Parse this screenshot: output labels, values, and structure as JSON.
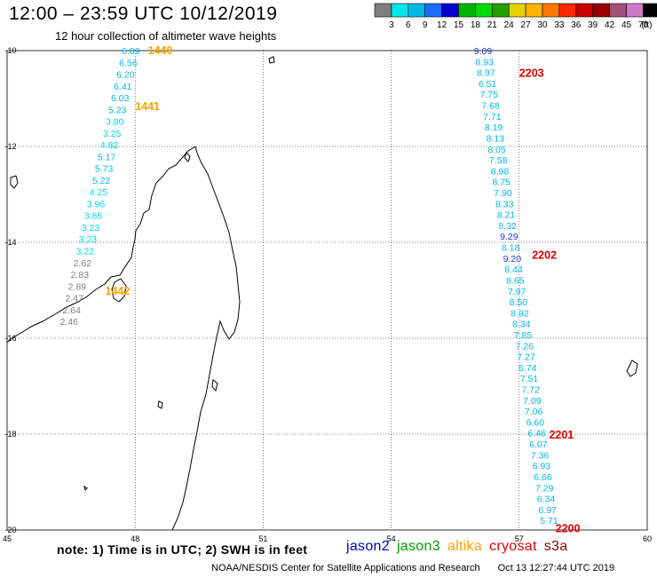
{
  "header": {
    "title": "12:00 – 23:59 UTC 10/12/2019",
    "subtitle": "12 hour collection of altimeter wave heights"
  },
  "legend": {
    "unit": "(ft)",
    "bins": [
      {
        "label": "",
        "color": "#7f7f7f"
      },
      {
        "label": "3",
        "color": "#00e5e5"
      },
      {
        "label": "6",
        "color": "#00b8e8"
      },
      {
        "label": "9",
        "color": "#1e6cff"
      },
      {
        "label": "12",
        "color": "#0000cc"
      },
      {
        "label": "15",
        "color": "#00b400"
      },
      {
        "label": "18",
        "color": "#00dc00"
      },
      {
        "label": "21",
        "color": "#22a000"
      },
      {
        "label": "24",
        "color": "#e6d200"
      },
      {
        "label": "27",
        "color": "#ffb400"
      },
      {
        "label": "30",
        "color": "#ff7800"
      },
      {
        "label": "33",
        "color": "#ff2800"
      },
      {
        "label": "36",
        "color": "#c80000"
      },
      {
        "label": "39",
        "color": "#960000"
      },
      {
        "label": "42",
        "color": "#a0507a"
      },
      {
        "label": "45",
        "color": "#d278c8"
      },
      {
        "label": "70",
        "color": "#000000"
      }
    ]
  },
  "axes": {
    "lat_ticks": [
      "-10",
      "-12",
      "-14",
      "-16",
      "-18",
      "-20"
    ],
    "lon_ticks": [
      "45",
      "48",
      "51",
      "54",
      "57",
      "60"
    ],
    "lat_range": [
      -20,
      -10
    ],
    "lon_range": [
      45,
      60
    ]
  },
  "tracks": [
    {
      "color": "#00b8e8",
      "lon_start": 47.9,
      "lon_end": 46.45,
      "lat_start": -10.0,
      "lat_end": -15.65,
      "values": [
        {
          "v": "6.89",
          "c": "#00b8e8"
        },
        {
          "v": "6.56",
          "c": "#00b8e8"
        },
        {
          "v": "6.20",
          "c": "#00b8e8"
        },
        {
          "v": "6.41",
          "c": "#00b8e8"
        },
        {
          "v": "6.03",
          "c": "#00b8e8"
        },
        {
          "v": "5.23",
          "c": "#00b8e8"
        },
        {
          "v": "3.80",
          "c": "#00d8e8"
        },
        {
          "v": "3.25",
          "c": "#00d8e8"
        },
        {
          "v": "4.82",
          "c": "#00d8e8"
        },
        {
          "v": "5.17",
          "c": "#00b8e8"
        },
        {
          "v": "5.73",
          "c": "#00b8e8"
        },
        {
          "v": "5.22",
          "c": "#00b8e8"
        },
        {
          "v": "4.25",
          "c": "#00d8e8"
        },
        {
          "v": "3.96",
          "c": "#00d8e8"
        },
        {
          "v": "3.85",
          "c": "#00d8e8"
        },
        {
          "v": "3.23",
          "c": "#00d8e8"
        },
        {
          "v": "3.23",
          "c": "#00d8e8"
        },
        {
          "v": "3.22",
          "c": "#00d8e8"
        },
        {
          "v": "2.62",
          "c": "#7f7f7f"
        },
        {
          "v": "2.83",
          "c": "#7f7f7f"
        },
        {
          "v": "2.89",
          "c": "#7f7f7f"
        },
        {
          "v": "2.47",
          "c": "#7f7f7f"
        },
        {
          "v": "2.64",
          "c": "#7f7f7f"
        },
        {
          "v": "2.46",
          "c": "#7f7f7f"
        }
      ]
    },
    {
      "color": "#00b8e8",
      "lon_start": 56.15,
      "lon_end": 57.7,
      "lat_start": -10.0,
      "lat_end": -19.8,
      "values": [
        {
          "v": "9.09",
          "c": "#1e3cc8"
        },
        {
          "v": "8.93",
          "c": "#00b8e8"
        },
        {
          "v": "8.97",
          "c": "#00b8e8"
        },
        {
          "v": "6.51",
          "c": "#00b8e8"
        },
        {
          "v": "7.75",
          "c": "#00b8e8"
        },
        {
          "v": "7.68",
          "c": "#00b8e8"
        },
        {
          "v": "7.71",
          "c": "#00b8e8"
        },
        {
          "v": "8.19",
          "c": "#00b8e8"
        },
        {
          "v": "8.13",
          "c": "#00b8e8"
        },
        {
          "v": "8.05",
          "c": "#00b8e8"
        },
        {
          "v": "7.58",
          "c": "#00b8e8"
        },
        {
          "v": "8.98",
          "c": "#00b8e8"
        },
        {
          "v": "8.75",
          "c": "#00b8e8"
        },
        {
          "v": "7.90",
          "c": "#00b8e8"
        },
        {
          "v": "8.33",
          "c": "#00b8e8"
        },
        {
          "v": "8.21",
          "c": "#00b8e8"
        },
        {
          "v": "8.32",
          "c": "#00b8e8"
        },
        {
          "v": "9.29",
          "c": "#1e3cc8"
        },
        {
          "v": "8.18",
          "c": "#00b8e8"
        },
        {
          "v": "9.20",
          "c": "#1e3cc8"
        },
        {
          "v": "8.44",
          "c": "#00b8e8"
        },
        {
          "v": "8.65",
          "c": "#00b8e8"
        },
        {
          "v": "7.97",
          "c": "#00b8e8"
        },
        {
          "v": "8.50",
          "c": "#00b8e8"
        },
        {
          "v": "8.92",
          "c": "#00b8e8"
        },
        {
          "v": "8.34",
          "c": "#00b8e8"
        },
        {
          "v": "7.85",
          "c": "#00b8e8"
        },
        {
          "v": "7.26",
          "c": "#00b8e8"
        },
        {
          "v": "7.27",
          "c": "#00b8e8"
        },
        {
          "v": "6.74",
          "c": "#00b8e8"
        },
        {
          "v": "7.51",
          "c": "#00b8e8"
        },
        {
          "v": "7.72",
          "c": "#00b8e8"
        },
        {
          "v": "7.09",
          "c": "#00b8e8"
        },
        {
          "v": "7.06",
          "c": "#00b8e8"
        },
        {
          "v": "6.60",
          "c": "#00b8e8"
        },
        {
          "v": "6.46",
          "c": "#00b8e8"
        },
        {
          "v": "6.07",
          "c": "#00b8e8"
        },
        {
          "v": "7.36",
          "c": "#00b8e8"
        },
        {
          "v": "6.93",
          "c": "#00b8e8"
        },
        {
          "v": "6.66",
          "c": "#00b8e8"
        },
        {
          "v": "7.29",
          "c": "#00b8e8"
        },
        {
          "v": "6.34",
          "c": "#00b8e8"
        },
        {
          "v": "6.97",
          "c": "#00b8e8"
        },
        {
          "v": "5.71",
          "c": "#00b8e8"
        }
      ]
    }
  ],
  "time_labels": [
    {
      "text": "1440",
      "color": "#ffa000",
      "lon": 48.3,
      "lat": -9.98
    },
    {
      "text": "1441",
      "color": "#ffa000",
      "lon": 48.0,
      "lat": -11.15
    },
    {
      "text": "1442",
      "color": "#ffa000",
      "lon": 47.3,
      "lat": -15.0
    },
    {
      "text": "2203",
      "color": "#e00000",
      "lon": 57.0,
      "lat": -10.45
    },
    {
      "text": "2202",
      "color": "#e00000",
      "lon": 57.3,
      "lat": -14.25
    },
    {
      "text": "2201",
      "color": "#e00000",
      "lon": 57.7,
      "lat": -18.0
    },
    {
      "text": "2200",
      "color": "#e00000",
      "lon": 57.85,
      "lat": -19.95
    }
  ],
  "footer": {
    "note": "note: 1) Time is in UTC; 2) SWH is in feet",
    "satellites": [
      {
        "name": "jason2",
        "color": "#0000cc"
      },
      {
        "name": "jason3",
        "color": "#00a000"
      },
      {
        "name": "altika",
        "color": "#ffa000"
      },
      {
        "name": "cryosat",
        "color": "#e00000"
      },
      {
        "name": "s3a",
        "color": "#960000"
      }
    ],
    "credit": "NOAA/NESDIS Center for Satellite Applications and Research",
    "timestamp": "Oct 13 12:27:44 UTC 2019"
  }
}
